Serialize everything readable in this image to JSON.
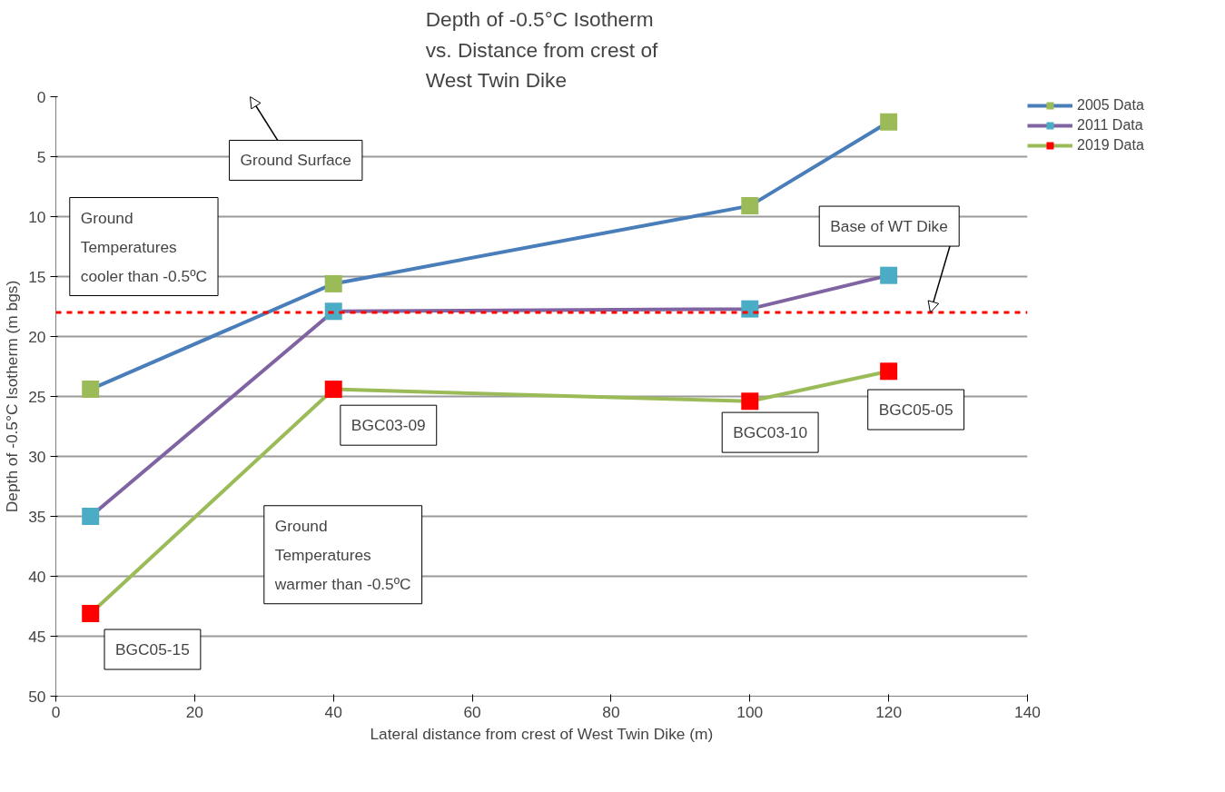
{
  "chart_data": {
    "type": "line",
    "title": "Depth of -0.5°C Isotherm\nvs. Distance from crest of\nWest Twin Dike",
    "xlabel": "Lateral distance from crest of West Twin Dike (m)",
    "ylabel": "Depth of -0.5°C Isotherm (m bgs)",
    "x": [
      5,
      40,
      100,
      120
    ],
    "series": [
      {
        "name": "2005 Data",
        "color": "#4a7ebb",
        "colors": [
          "#9bbb59",
          "#9bbb59",
          "#9bbb59",
          "#9bbb59"
        ],
        "values": [
          24.4,
          15.6,
          9.1,
          2.1
        ]
      },
      {
        "name": "2011 Data",
        "color": "#8064a2",
        "colors": [
          "#4bacc6",
          "#4bacc6",
          "#4bacc6",
          "#4bacc6"
        ],
        "values": [
          35,
          17.9,
          17.7,
          14.9
        ]
      },
      {
        "name": "2019 Data",
        "color": "#9bbb59",
        "colors": [
          "#ff0000",
          "#ff0000",
          "#ff0000",
          "#ff0000"
        ],
        "values": [
          43.1,
          24.4,
          25.4,
          22.9
        ]
      }
    ],
    "xlim": [
      0,
      140
    ],
    "ylim": [
      50,
      0
    ],
    "xticks": [
      0,
      20,
      40,
      60,
      80,
      100,
      120,
      140
    ],
    "yticks": [
      0,
      5,
      10,
      15,
      20,
      25,
      30,
      35,
      40,
      45,
      50
    ],
    "ref_lines": [
      {
        "axis": "y",
        "value": 18,
        "color": "#ff0000",
        "line_style": "dashed"
      }
    ],
    "annotations": [
      "Ground\nTemperatures\ncooler than -0.5ºC",
      "Ground Surface",
      {
        "text": "Base of WT Dike",
        "x": 126,
        "y": 18
      },
      "Ground\nTemperatures\nwarmer than -0.5ºC",
      {
        "text": "BGC03-09",
        "x": 40,
        "y": 24.4
      },
      {
        "text": "BGC03-10",
        "x": 100,
        "y": 25.4
      },
      {
        "text": "BGC05-05",
        "x": 120,
        "y": 22.9
      },
      {
        "text": "BGC05-15",
        "x": 5,
        "y": 43.1
      }
    ],
    "grid": "y",
    "legend": "top right",
    "marker": "square",
    "line_style": "solid"
  }
}
